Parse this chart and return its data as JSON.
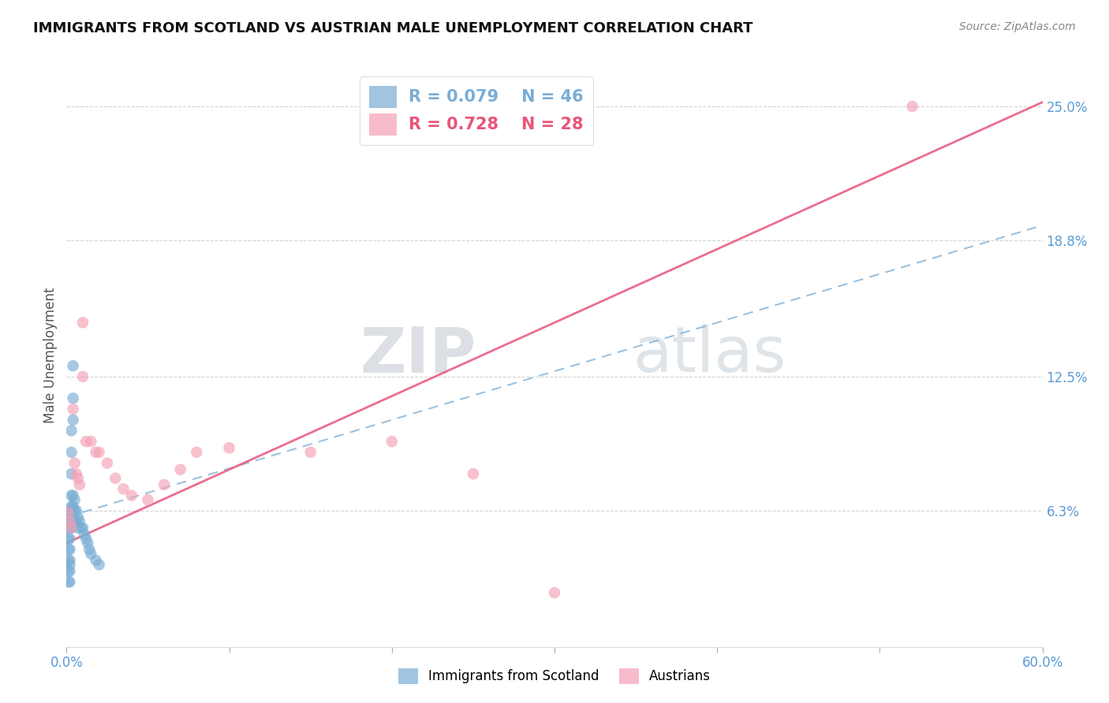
{
  "title": "IMMIGRANTS FROM SCOTLAND VS AUSTRIAN MALE UNEMPLOYMENT CORRELATION CHART",
  "source": "Source: ZipAtlas.com",
  "ylabel": "Male Unemployment",
  "xlim": [
    0.0,
    0.6
  ],
  "ylim": [
    0.0,
    0.27
  ],
  "ytick_labels_right": [
    "6.3%",
    "12.5%",
    "18.8%",
    "25.0%"
  ],
  "ytick_values_right": [
    0.063,
    0.125,
    0.188,
    0.25
  ],
  "gridline_color": "#c8c8c8",
  "background_color": "#ffffff",
  "blue_color": "#7aadd4",
  "pink_color": "#f4a0b5",
  "blue_line_color": "#7aadd4",
  "pink_line_color": "#e8547a",
  "legend_R_blue": "R = 0.079",
  "legend_N_blue": "N = 46",
  "legend_R_pink": "R = 0.728",
  "legend_N_pink": "N = 28",
  "watermark_zip": "ZIP",
  "watermark_atlas": "atlas",
  "pink_trend_x0": 0.0,
  "pink_trend_y0": 0.048,
  "pink_trend_x1": 0.6,
  "pink_trend_y1": 0.252,
  "blue_trend_x0": 0.0,
  "blue_trend_y0": 0.06,
  "blue_trend_x1": 0.6,
  "blue_trend_y1": 0.195,
  "series_blue_x": [
    0.001,
    0.001,
    0.001,
    0.001,
    0.001,
    0.001,
    0.001,
    0.001,
    0.002,
    0.002,
    0.002,
    0.002,
    0.002,
    0.002,
    0.002,
    0.002,
    0.002,
    0.003,
    0.003,
    0.003,
    0.003,
    0.003,
    0.003,
    0.003,
    0.004,
    0.004,
    0.004,
    0.004,
    0.004,
    0.005,
    0.005,
    0.005,
    0.006,
    0.006,
    0.007,
    0.007,
    0.008,
    0.009,
    0.01,
    0.011,
    0.012,
    0.013,
    0.014,
    0.015,
    0.018,
    0.02
  ],
  "series_blue_y": [
    0.06,
    0.062,
    0.055,
    0.05,
    0.045,
    0.04,
    0.035,
    0.03,
    0.063,
    0.058,
    0.055,
    0.05,
    0.045,
    0.04,
    0.038,
    0.035,
    0.03,
    0.1,
    0.09,
    0.08,
    0.07,
    0.065,
    0.06,
    0.055,
    0.13,
    0.115,
    0.105,
    0.07,
    0.065,
    0.068,
    0.063,
    0.058,
    0.063,
    0.058,
    0.06,
    0.055,
    0.058,
    0.055,
    0.055,
    0.052,
    0.05,
    0.048,
    0.045,
    0.043,
    0.04,
    0.038
  ],
  "series_pink_x": [
    0.001,
    0.002,
    0.003,
    0.004,
    0.005,
    0.006,
    0.007,
    0.008,
    0.01,
    0.012,
    0.015,
    0.018,
    0.02,
    0.025,
    0.03,
    0.035,
    0.04,
    0.05,
    0.06,
    0.07,
    0.08,
    0.1,
    0.15,
    0.2,
    0.25,
    0.3,
    0.52,
    0.01
  ],
  "series_pink_y": [
    0.062,
    0.058,
    0.055,
    0.11,
    0.085,
    0.08,
    0.078,
    0.075,
    0.125,
    0.095,
    0.095,
    0.09,
    0.09,
    0.085,
    0.078,
    0.073,
    0.07,
    0.068,
    0.075,
    0.082,
    0.09,
    0.092,
    0.09,
    0.095,
    0.08,
    0.025,
    0.25,
    0.15
  ]
}
